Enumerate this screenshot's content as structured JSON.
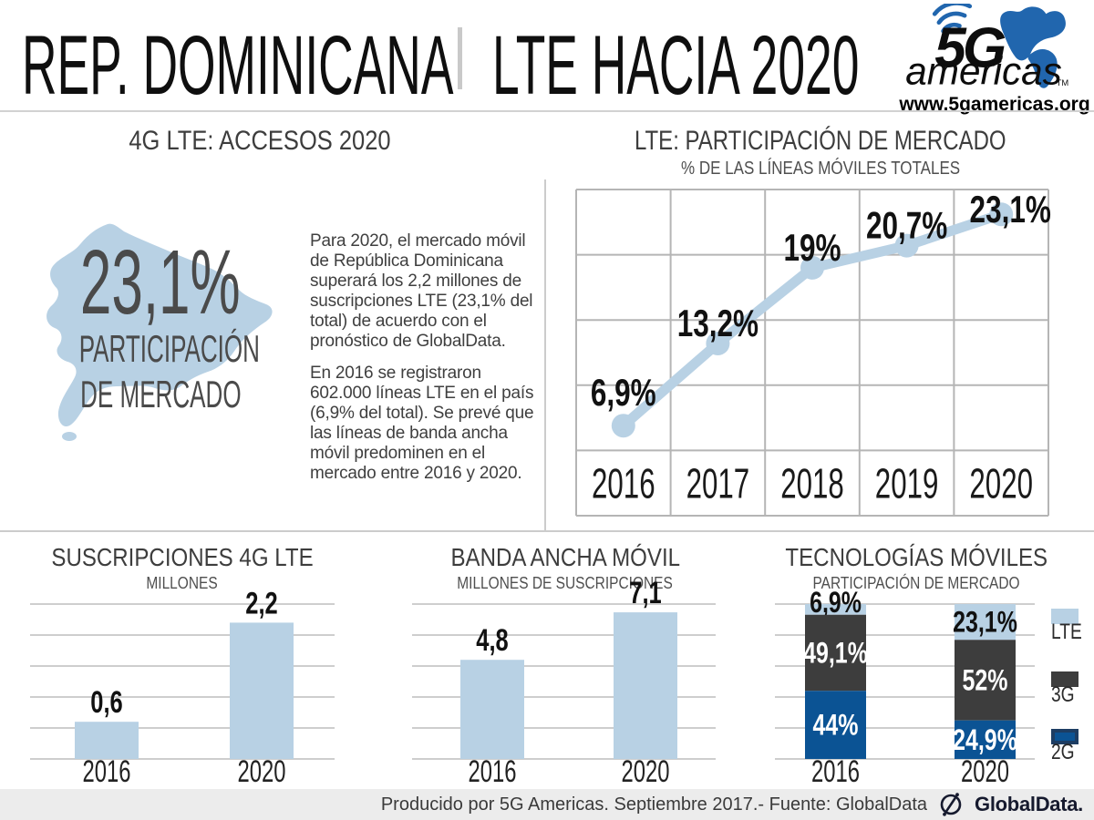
{
  "header": {
    "title_left": "REP. DOMINICANA",
    "title_right": "LTE HACIA 2020",
    "logo": {
      "five_g": "5G",
      "americas": "americas",
      "tm": "TM",
      "url": "www.5gamericas.org"
    }
  },
  "access_section": {
    "title": "4G LTE: ACCESOS 2020",
    "map_value": "23,1%",
    "map_label_line1": "PARTICIPACIÓN",
    "map_label_line2": "DE MERCADO",
    "paragraph1": "Para 2020, el mercado móvil de República Dominicana superará los 2,2 millones de suscripciones LTE (23,1% del total) de acuerdo con el pronóstico de GlobalData.",
    "paragraph2": "En 2016 se registraron 602.000 líneas LTE en el país (6,9% del total). Se prevé que las líneas de banda ancha móvil predominen en el mercado entre 2016 y 2020."
  },
  "chart_data": [
    {
      "id": "lte_share_line",
      "type": "line",
      "title": "LTE: PARTICIPACIÓN DE MERCADO",
      "subtitle": "% DE LAS LÍNEAS MÓVILES TOTALES",
      "x": [
        "2016",
        "2017",
        "2018",
        "2019",
        "2020"
      ],
      "values": [
        6.9,
        13.2,
        19,
        20.7,
        23.1
      ],
      "labels": [
        "6,9%",
        "13,2%",
        "19%",
        "20,7%",
        "23,1%"
      ],
      "ylim": [
        5,
        25
      ],
      "grid": true,
      "legend_position": "none",
      "line_color": "#b8d1e4"
    },
    {
      "id": "lte_subs_bar",
      "type": "bar",
      "title": "SUSCRIPCIONES 4G LTE",
      "subtitle": "MILLONES",
      "categories": [
        "2016",
        "2020"
      ],
      "values": [
        0.6,
        2.2
      ],
      "labels": [
        "0,6",
        "2,2"
      ],
      "ylim": [
        0,
        2.5
      ],
      "grid": true,
      "bar_color": "#b8d1e4"
    },
    {
      "id": "mobile_broadband_bar",
      "type": "bar",
      "title": "BANDA ANCHA MÓVIL",
      "subtitle": "MILLONES DE SUSCRIPCIONES",
      "categories": [
        "2016",
        "2020"
      ],
      "values": [
        4.8,
        7.1
      ],
      "labels": [
        "4,8",
        "7,1"
      ],
      "ylim": [
        0,
        7.5
      ],
      "grid": true,
      "bar_color": "#b8d1e4"
    },
    {
      "id": "mobile_tech_stacked",
      "type": "bar",
      "stacked": true,
      "title": "TECNOLOGÍAS MÓVILES",
      "subtitle": "PARTICIPACIÓN DE MERCADO",
      "categories": [
        "2016",
        "2020"
      ],
      "series": [
        {
          "name": "LTE",
          "values": [
            6.9,
            23.1
          ],
          "labels": [
            "6,9%",
            "23,1%"
          ],
          "color": "#b8d1e4"
        },
        {
          "name": "3G",
          "values": [
            49.1,
            52
          ],
          "labels": [
            "49,1%",
            "52%"
          ],
          "color": "#3d3d3d"
        },
        {
          "name": "2G",
          "values": [
            44,
            24.9
          ],
          "labels": [
            "44%",
            "24,9%"
          ],
          "color": "#0b5394"
        }
      ],
      "legend": [
        "LTE",
        "3G",
        "2G"
      ],
      "legend_position": "right",
      "ylim": [
        0,
        100
      ]
    }
  ],
  "footer": {
    "text": "Producido por 5G Americas. Septiembre 2017.- Fuente: GlobalData",
    "brand": "GlobalData."
  },
  "colors": {
    "light_blue": "#b8d1e4",
    "dark_gray": "#3d3d3d",
    "dark_blue": "#0b5394",
    "logo_blue": "#2166ae",
    "grid_gray": "#bdbdbd",
    "footer_bg": "#ececec"
  }
}
